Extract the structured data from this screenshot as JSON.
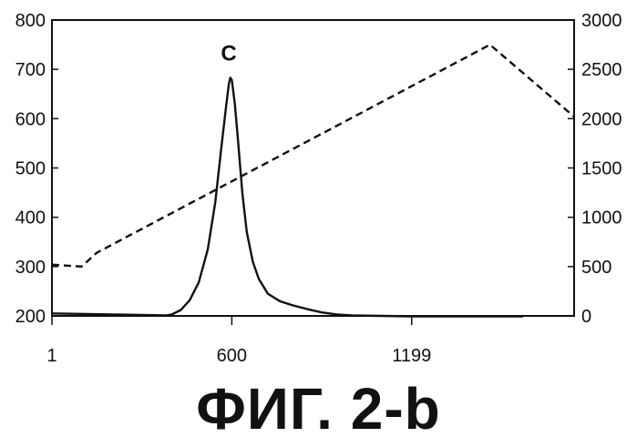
{
  "figure_caption": "ФИГ. 2-b",
  "chart_data": {
    "type": "line",
    "title": "",
    "xlabel": "",
    "ylabel": "",
    "y2label": "",
    "grid": false,
    "legend": "none",
    "x_ticks": [
      1,
      600,
      1199
    ],
    "x_range": [
      1,
      1740
    ],
    "y_left_ticks": [
      200,
      300,
      400,
      500,
      600,
      700,
      800
    ],
    "y_left_range": [
      200,
      800
    ],
    "y_right_ticks": [
      0,
      500,
      1000,
      1500,
      2000,
      2500,
      3000
    ],
    "y_right_range": [
      0,
      3000
    ],
    "annotations": [
      {
        "text": "C",
        "x": 590,
        "y": 718
      }
    ],
    "series": [
      {
        "axis": "left",
        "style": "solid",
        "color": "#111111",
        "points": [
          [
            1,
            205
          ],
          [
            100,
            204
          ],
          [
            200,
            203
          ],
          [
            300,
            202
          ],
          [
            380,
            201
          ],
          [
            400,
            203
          ],
          [
            430,
            212
          ],
          [
            460,
            232
          ],
          [
            490,
            268
          ],
          [
            520,
            335
          ],
          [
            545,
            430
          ],
          [
            565,
            540
          ],
          [
            580,
            620
          ],
          [
            590,
            670
          ],
          [
            595,
            683
          ],
          [
            600,
            678
          ],
          [
            610,
            630
          ],
          [
            620,
            560
          ],
          [
            635,
            450
          ],
          [
            650,
            370
          ],
          [
            670,
            310
          ],
          [
            690,
            275
          ],
          [
            720,
            245
          ],
          [
            760,
            230
          ],
          [
            800,
            222
          ],
          [
            850,
            214
          ],
          [
            900,
            207
          ],
          [
            950,
            203
          ],
          [
            1000,
            201
          ],
          [
            1100,
            200
          ],
          [
            1200,
            199
          ],
          [
            1350,
            199
          ],
          [
            1500,
            199
          ],
          [
            1570,
            199
          ]
        ]
      },
      {
        "axis": "right",
        "style": "dashed",
        "color": "#111111",
        "points": [
          [
            1,
            520
          ],
          [
            100,
            500
          ],
          [
            150,
            640
          ],
          [
            1460,
            2750
          ],
          [
            1740,
            2020
          ]
        ]
      }
    ]
  }
}
